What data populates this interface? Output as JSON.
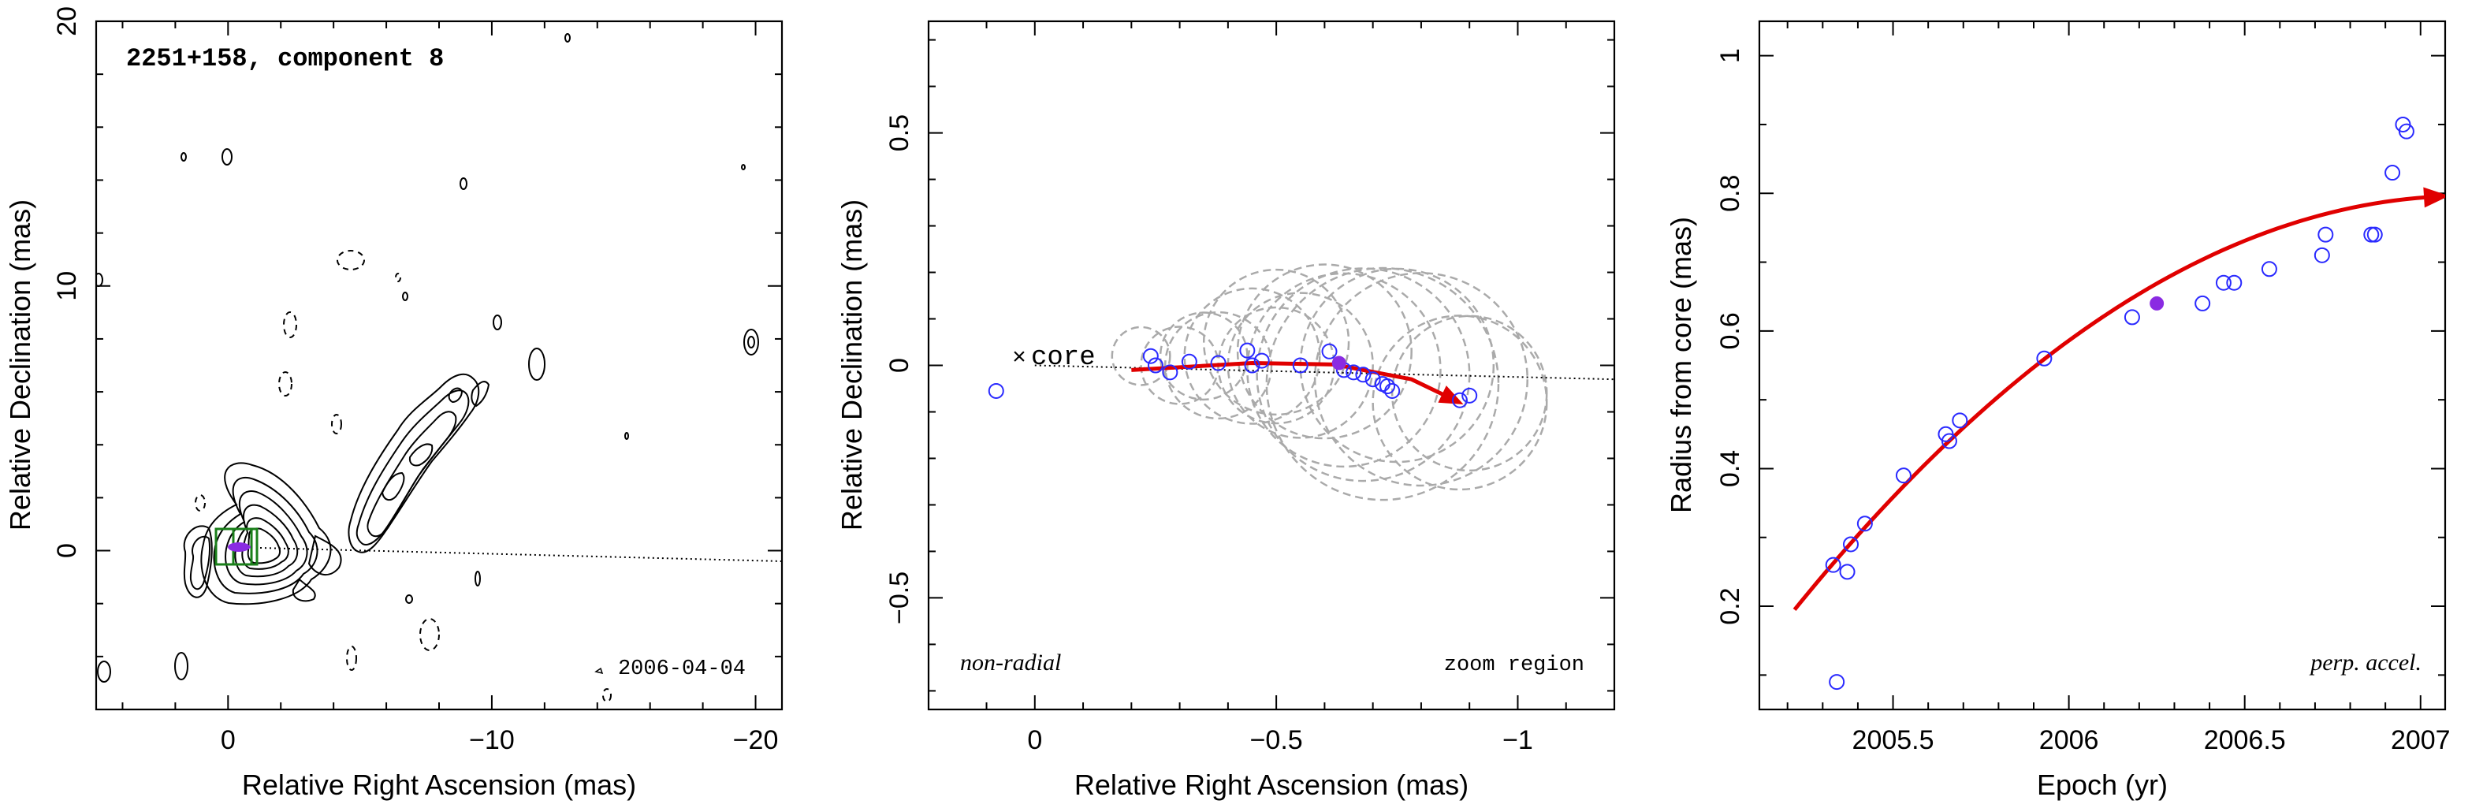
{
  "chart_data": [
    {
      "type": "contour",
      "panel": "left",
      "title": "2251+158, component 8",
      "xlabel": "Relative Right Ascension (mas)",
      "ylabel": "Relative Declination (mas)",
      "xlim": [
        5,
        -21
      ],
      "ylim": [
        -6,
        20
      ],
      "xticks": [
        0,
        -10,
        -20
      ],
      "yticks": [
        0,
        10,
        20
      ],
      "date": "2006-04-04",
      "feature_position": [
        -0.6,
        0.0
      ]
    },
    {
      "type": "scatter",
      "panel": "middle",
      "xlabel": "Relative Right Ascension (mas)",
      "ylabel": "Relative Declination (mas)",
      "xlim": [
        0.22,
        -1.2
      ],
      "ylim": [
        -0.74,
        0.74
      ],
      "xticks": [
        0,
        -0.5,
        -1
      ],
      "yticks": [
        -0.5,
        0,
        0.5
      ],
      "core_label": "core",
      "left_note": "non-radial",
      "right_note": "zoom region",
      "highlight": {
        "x": -0.63,
        "y": 0.005
      },
      "points": [
        {
          "x": 0.08,
          "y": -0.055
        },
        {
          "x": -0.24,
          "y": 0.02
        },
        {
          "x": -0.25,
          "y": 0.0
        },
        {
          "x": -0.28,
          "y": -0.015
        },
        {
          "x": -0.32,
          "y": 0.008
        },
        {
          "x": -0.38,
          "y": 0.005
        },
        {
          "x": -0.44,
          "y": 0.032
        },
        {
          "x": -0.47,
          "y": 0.01
        },
        {
          "x": -0.45,
          "y": 0.0
        },
        {
          "x": -0.55,
          "y": 0.0
        },
        {
          "x": -0.61,
          "y": 0.03
        },
        {
          "x": -0.64,
          "y": -0.01
        },
        {
          "x": -0.66,
          "y": -0.015
        },
        {
          "x": -0.68,
          "y": -0.02
        },
        {
          "x": -0.7,
          "y": -0.03
        },
        {
          "x": -0.72,
          "y": -0.04
        },
        {
          "x": -0.74,
          "y": -0.055
        },
        {
          "x": -0.73,
          "y": -0.045
        },
        {
          "x": -0.88,
          "y": -0.075
        },
        {
          "x": -0.9,
          "y": -0.065
        }
      ],
      "circles": [
        {
          "x": -0.22,
          "y": 0.02,
          "r": 0.06
        },
        {
          "x": -0.3,
          "y": 0.0,
          "r": 0.08
        },
        {
          "x": -0.38,
          "y": 0.0,
          "r": 0.11
        },
        {
          "x": -0.45,
          "y": 0.02,
          "r": 0.14
        },
        {
          "x": -0.5,
          "y": 0.0,
          "r": 0.12
        },
        {
          "x": -0.55,
          "y": 0.0,
          "r": 0.15
        },
        {
          "x": -0.6,
          "y": 0.03,
          "r": 0.18
        },
        {
          "x": -0.64,
          "y": -0.01,
          "r": 0.2
        },
        {
          "x": -0.68,
          "y": -0.02,
          "r": 0.22
        },
        {
          "x": -0.72,
          "y": -0.04,
          "r": 0.24
        },
        {
          "x": -0.75,
          "y": 0.0,
          "r": 0.2
        },
        {
          "x": -0.8,
          "y": -0.03,
          "r": 0.22
        },
        {
          "x": -0.88,
          "y": -0.08,
          "r": 0.18
        },
        {
          "x": -0.9,
          "y": -0.06,
          "r": 0.16
        },
        {
          "x": -0.5,
          "y": 0.05,
          "r": 0.15
        },
        {
          "x": -0.35,
          "y": 0.02,
          "r": 0.09
        }
      ],
      "arrow_path": [
        [
          -0.2,
          -0.01
        ],
        [
          -0.45,
          0.005
        ],
        [
          -0.62,
          0.002
        ],
        [
          -0.78,
          -0.03
        ],
        [
          -0.87,
          -0.075
        ]
      ],
      "guide_line": [
        [
          0,
          0
        ],
        [
          -1.2,
          -0.03
        ]
      ]
    },
    {
      "type": "scatter",
      "panel": "right",
      "xlabel": "Epoch (yr)",
      "ylabel": "Radius from core (mas)",
      "xlim": [
        2005.12,
        2007.07
      ],
      "ylim": [
        0.05,
        1.05
      ],
      "xticks": [
        2005.5,
        2006,
        2006.5,
        2007
      ],
      "xticklabels": [
        "2005.5",
        "2006",
        "2006.5",
        "2007"
      ],
      "yticks": [
        0.2,
        0.4,
        0.6,
        0.8,
        1
      ],
      "yticklabels": [
        "0.2",
        "0.4",
        "0.6",
        "0.8",
        "1"
      ],
      "note": "perp. accel.",
      "highlight": {
        "x": 2006.25,
        "y": 0.64
      },
      "points": [
        {
          "x": 2005.33,
          "y": 0.26
        },
        {
          "x": 2005.34,
          "y": 0.09
        },
        {
          "x": 2005.37,
          "y": 0.25
        },
        {
          "x": 2005.38,
          "y": 0.29
        },
        {
          "x": 2005.42,
          "y": 0.32
        },
        {
          "x": 2005.53,
          "y": 0.39
        },
        {
          "x": 2005.65,
          "y": 0.45
        },
        {
          "x": 2005.66,
          "y": 0.44
        },
        {
          "x": 2005.69,
          "y": 0.47
        },
        {
          "x": 2005.93,
          "y": 0.56
        },
        {
          "x": 2006.18,
          "y": 0.62
        },
        {
          "x": 2006.38,
          "y": 0.64
        },
        {
          "x": 2006.44,
          "y": 0.67
        },
        {
          "x": 2006.47,
          "y": 0.67
        },
        {
          "x": 2006.57,
          "y": 0.69
        },
        {
          "x": 2006.72,
          "y": 0.71
        },
        {
          "x": 2006.73,
          "y": 0.74
        },
        {
          "x": 2006.86,
          "y": 0.74
        },
        {
          "x": 2006.87,
          "y": 0.74
        },
        {
          "x": 2006.92,
          "y": 0.83
        },
        {
          "x": 2006.95,
          "y": 0.9
        },
        {
          "x": 2006.96,
          "y": 0.89
        }
      ],
      "fit_curve": {
        "x_start": 2005.22,
        "x_end": 2007.05,
        "coeffs": [
          0.195,
          0.63,
          -0.165
        ]
      }
    }
  ]
}
